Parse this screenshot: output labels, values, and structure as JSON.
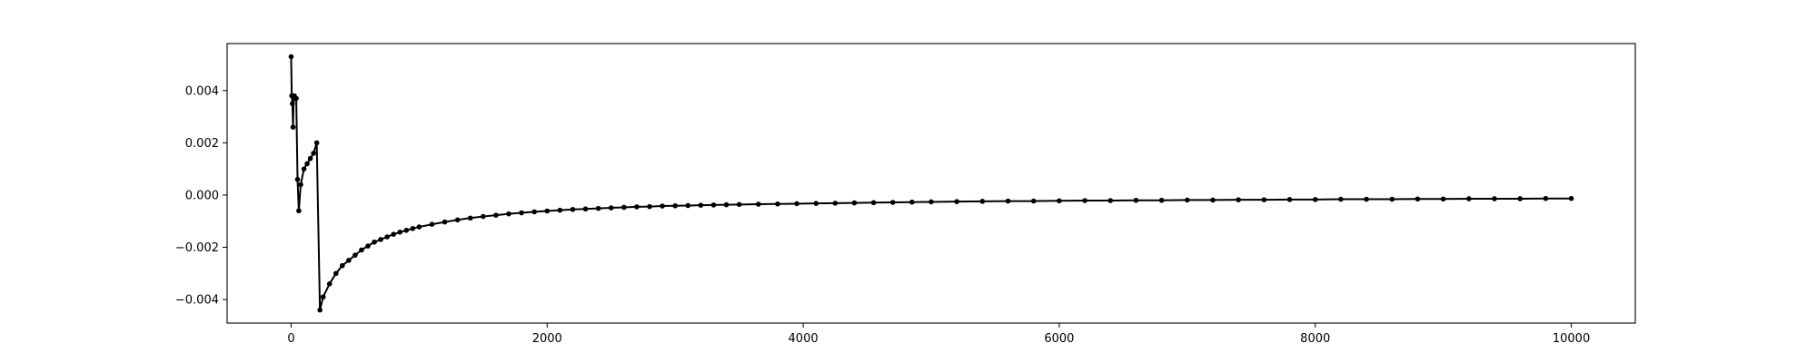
{
  "chart_data": {
    "type": "line",
    "title": "",
    "xlabel": "",
    "ylabel": "",
    "xlim": [
      -500,
      10500
    ],
    "ylim": [
      -0.0049,
      0.0058
    ],
    "grid": false,
    "legend": "none",
    "line_color": "#000000",
    "marker": "point",
    "x_ticks": [
      {
        "value": 0,
        "label": "0"
      },
      {
        "value": 2000,
        "label": "2000"
      },
      {
        "value": 4000,
        "label": "4000"
      },
      {
        "value": 6000,
        "label": "6000"
      },
      {
        "value": 8000,
        "label": "8000"
      },
      {
        "value": 10000,
        "label": "10000"
      }
    ],
    "y_ticks": [
      {
        "value": 0.004,
        "label": "0.004"
      },
      {
        "value": 0.002,
        "label": "0.002"
      },
      {
        "value": 0.0,
        "label": "0.000"
      },
      {
        "value": -0.002,
        "label": "−0.002"
      },
      {
        "value": -0.004,
        "label": "−0.004"
      }
    ],
    "series": [
      {
        "x": [
          0,
          5,
          10,
          15,
          20,
          25,
          30,
          40,
          50,
          60,
          75,
          100,
          125,
          150,
          175,
          200,
          225,
          250,
          300,
          350,
          400,
          450,
          500,
          550,
          600,
          650,
          700,
          750,
          800,
          850,
          900,
          950,
          1000,
          1100,
          1200,
          1300,
          1400,
          1500,
          1600,
          1700,
          1800,
          1900,
          2000,
          2100,
          2200,
          2300,
          2400,
          2500,
          2600,
          2700,
          2800,
          2900,
          3000,
          3100,
          3200,
          3300,
          3400,
          3500,
          3650,
          3800,
          3950,
          4100,
          4250,
          4400,
          4550,
          4700,
          4850,
          5000,
          5200,
          5400,
          5600,
          5800,
          6000,
          6200,
          6400,
          6600,
          6800,
          7000,
          7200,
          7400,
          7600,
          7800,
          8000,
          8200,
          8400,
          8600,
          8800,
          9000,
          9200,
          9400,
          9600,
          9800,
          10000
        ],
        "y": [
          0.0053,
          0.0038,
          0.0035,
          0.0026,
          0.0037,
          0.0038,
          0.0037,
          0.0037,
          0.0006,
          -0.0006,
          0.0004,
          0.001,
          0.0012,
          0.0014,
          0.0016,
          0.002,
          -0.0044,
          -0.0039,
          -0.0034,
          -0.003,
          -0.0027,
          -0.0025,
          -0.0023,
          -0.0021,
          -0.00195,
          -0.0018,
          -0.0017,
          -0.0016,
          -0.0015,
          -0.00142,
          -0.00135,
          -0.00128,
          -0.00122,
          -0.00112,
          -0.00103,
          -0.00095,
          -0.00088,
          -0.00082,
          -0.00077,
          -0.00072,
          -0.00068,
          -0.00064,
          -0.00061,
          -0.00058,
          -0.00055,
          -0.00053,
          -0.00051,
          -0.00049,
          -0.00047,
          -0.00045,
          -0.00044,
          -0.00042,
          -0.00041,
          -0.0004,
          -0.00039,
          -0.00038,
          -0.00037,
          -0.00036,
          -0.00035,
          -0.00034,
          -0.00033,
          -0.00032,
          -0.00031,
          -0.0003,
          -0.00029,
          -0.00028,
          -0.00027,
          -0.00026,
          -0.00025,
          -0.00024,
          -0.00023,
          -0.00023,
          -0.00022,
          -0.00021,
          -0.00021,
          -0.0002,
          -0.0002,
          -0.00019,
          -0.00019,
          -0.00018,
          -0.00018,
          -0.00017,
          -0.00017,
          -0.00016,
          -0.00016,
          -0.00016,
          -0.00015,
          -0.00015,
          -0.00014,
          -0.00014,
          -0.00014,
          -0.00013,
          -0.00013
        ]
      }
    ]
  }
}
